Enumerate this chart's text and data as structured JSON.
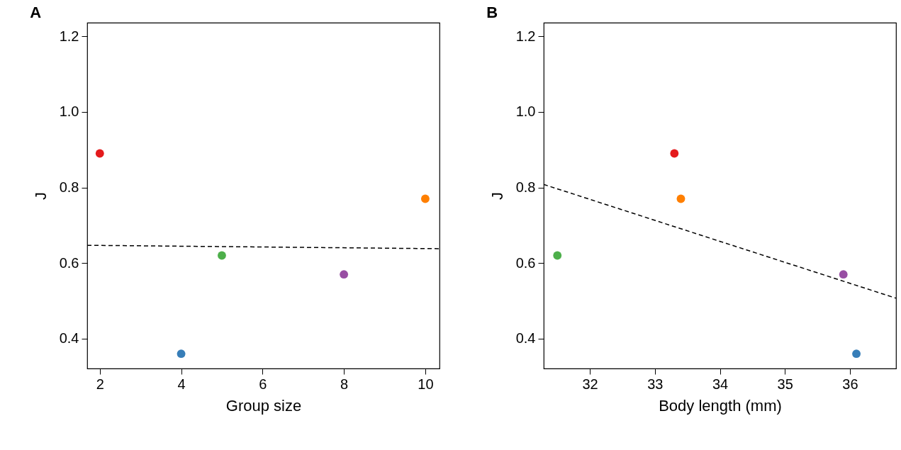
{
  "chart_data": [
    {
      "type": "scatter",
      "title": "A",
      "xlabel": "Group size",
      "ylabel": "J",
      "xlim": [
        1.69,
        10.35
      ],
      "xticks": [
        2,
        4,
        6,
        8,
        10
      ],
      "ylim": [
        0.321,
        1.236
      ],
      "yticks": [
        0.4,
        0.6,
        0.8,
        {
          "value": 1.0,
          "label": "1.0"
        },
        1.2
      ],
      "grid": false,
      "series": [
        {
          "x": [
            2,
            4,
            5,
            8,
            10
          ],
          "values": [
            0.89,
            0.36,
            0.62,
            0.57,
            0.77
          ],
          "colors": [
            "#e41a1c",
            "#377eb8",
            "#4daf4a",
            "#984ea3",
            "#ff7f00"
          ],
          "marker": "circle"
        },
        {
          "type": "line",
          "x": [
            1.69,
            10.35
          ],
          "values": [
            0.647,
            0.638
          ],
          "color": "#000000",
          "line_style": "dashed"
        }
      ]
    },
    {
      "type": "scatter",
      "title": "B",
      "xlabel": "Body length (mm)",
      "ylabel": "J",
      "xlim": [
        31.29,
        36.71
      ],
      "xticks": [
        32,
        33,
        34,
        35,
        36
      ],
      "ylim": [
        0.321,
        1.236
      ],
      "yticks": [
        0.4,
        0.6,
        0.8,
        {
          "value": 1.0,
          "label": "1.0"
        },
        1.2
      ],
      "grid": false,
      "series": [
        {
          "x": [
            33.3,
            33.4,
            31.5,
            35.9,
            36.1
          ],
          "values": [
            0.89,
            0.77,
            0.62,
            0.57,
            0.36
          ],
          "colors": [
            "#e41a1c",
            "#ff7f00",
            "#4daf4a",
            "#984ea3",
            "#377eb8"
          ],
          "marker": "circle"
        },
        {
          "type": "line",
          "x": [
            31.29,
            36.71
          ],
          "values": [
            0.808,
            0.507
          ],
          "color": "#000000",
          "line_style": "dashed"
        }
      ]
    }
  ]
}
